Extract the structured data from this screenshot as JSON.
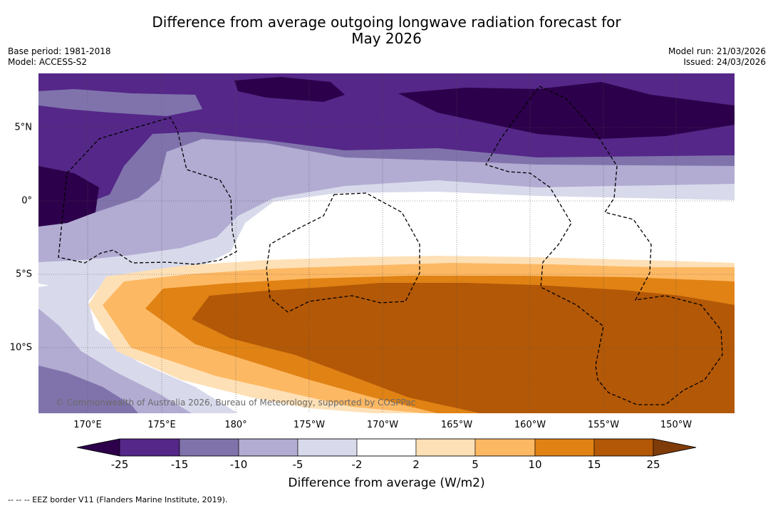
{
  "title_line1": "Difference from average outgoing longwave radiation forecast for",
  "title_line2": "May 2026",
  "meta_left": {
    "base_period": "Base period: 1981-2018",
    "model": "Model: ACCESS-S2"
  },
  "meta_right": {
    "model_run": "Model run: 21/03/2026",
    "issued": "Issued: 24/03/2026"
  },
  "lat_labels": [
    "5°N",
    "0°",
    "5°S",
    "10°S"
  ],
  "lon_labels": [
    "170°E",
    "175°E",
    "180°",
    "175°W",
    "170°W",
    "165°W",
    "160°W",
    "155°W",
    "150°W"
  ],
  "colorbar": {
    "ticks": [
      "-25",
      "-15",
      "-10",
      "-5",
      "-2",
      "2",
      "5",
      "10",
      "15",
      "25"
    ],
    "colors": [
      "#2d004b",
      "#542788",
      "#8073ac",
      "#b2abd2",
      "#d8daeb",
      "#ffffff",
      "#fee0b6",
      "#fdb863",
      "#e08214",
      "#b35806",
      "#7f3b08"
    ],
    "title": "Difference from average (W/m2)"
  },
  "copyright": "© Commonwealth of Australia 2026, Bureau of Meteorology, supported by COSPPac",
  "footnote": "--  --  -- EEZ border V11 (Flanders Marine Institute, 2019)."
}
